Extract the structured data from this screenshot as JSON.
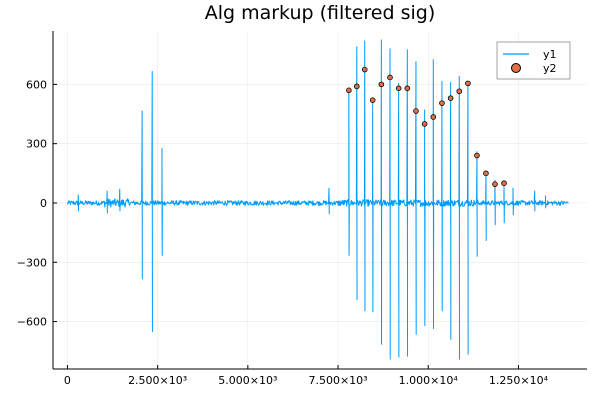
{
  "chart_data": {
    "type": "line",
    "title": "Alg markup (filtered sig)",
    "xlabel": "",
    "ylabel": "",
    "xlim": [
      -400,
      14400
    ],
    "ylim": [
      -840,
      870
    ],
    "grid": true,
    "legend_position": "top-right",
    "x_ticks": [
      {
        "value": 0,
        "label": "0"
      },
      {
        "value": 2500,
        "label": "2.500×10³"
      },
      {
        "value": 5000,
        "label": "5.000×10³"
      },
      {
        "value": 7500,
        "label": "7.500×10³"
      },
      {
        "value": 10000,
        "label": "1.000×10⁴"
      },
      {
        "value": 12500,
        "label": "1.250×10⁴"
      }
    ],
    "y_ticks": [
      {
        "value": -600,
        "label": "−600"
      },
      {
        "value": -300,
        "label": "−300"
      },
      {
        "value": 0,
        "label": "0"
      },
      {
        "value": 300,
        "label": "300"
      },
      {
        "value": 600,
        "label": "600"
      }
    ],
    "series": [
      {
        "name": "y1",
        "kind": "line",
        "color": "#009af9",
        "x_range": [
          0,
          13900
        ],
        "noise_amplitude": 12,
        "spikes": [
          {
            "x": 300,
            "high": 40,
            "low": -40
          },
          {
            "x": 1100,
            "high": 60,
            "low": -50
          },
          {
            "x": 1450,
            "high": 70,
            "low": -40
          },
          {
            "x": 2070,
            "high": 465,
            "low": -385
          },
          {
            "x": 2350,
            "high": 665,
            "low": -650
          },
          {
            "x": 2620,
            "high": 275,
            "low": -265
          },
          {
            "x": 7250,
            "high": 75,
            "low": -55
          },
          {
            "x": 7800,
            "high": 560,
            "low": -265
          },
          {
            "x": 8020,
            "high": 790,
            "low": -490
          },
          {
            "x": 8240,
            "high": 820,
            "low": -545
          },
          {
            "x": 8460,
            "high": 520,
            "low": -550
          },
          {
            "x": 8700,
            "high": 825,
            "low": -715
          },
          {
            "x": 8940,
            "high": 780,
            "low": -790
          },
          {
            "x": 9180,
            "high": 605,
            "low": -780
          },
          {
            "x": 9420,
            "high": 775,
            "low": -775
          },
          {
            "x": 9660,
            "high": 715,
            "low": -665
          },
          {
            "x": 9900,
            "high": 470,
            "low": -620
          },
          {
            "x": 10140,
            "high": 725,
            "low": -635
          },
          {
            "x": 10380,
            "high": 615,
            "low": -545
          },
          {
            "x": 10620,
            "high": 610,
            "low": -690
          },
          {
            "x": 10860,
            "high": 640,
            "low": -790
          },
          {
            "x": 11100,
            "high": 615,
            "low": -765
          },
          {
            "x": 11350,
            "high": 260,
            "low": -270
          },
          {
            "x": 11600,
            "high": 160,
            "low": -190
          },
          {
            "x": 11850,
            "high": 115,
            "low": -110
          },
          {
            "x": 12100,
            "high": 100,
            "low": -100
          },
          {
            "x": 12350,
            "high": 75,
            "low": -60
          },
          {
            "x": 12950,
            "high": 60,
            "low": -40
          },
          {
            "x": 13250,
            "high": 35,
            "low": -25
          }
        ]
      },
      {
        "name": "y2",
        "kind": "scatter",
        "color": "#e26f46",
        "x": [
          7800,
          8020,
          8240,
          8460,
          8700,
          8940,
          9180,
          9420,
          9660,
          9900,
          10140,
          10380,
          10620,
          10860,
          11100,
          11350,
          11600,
          11850,
          12100
        ],
        "y": [
          570,
          590,
          675,
          520,
          600,
          635,
          580,
          580,
          465,
          400,
          435,
          505,
          530,
          565,
          605,
          240,
          150,
          95,
          100
        ]
      }
    ]
  }
}
